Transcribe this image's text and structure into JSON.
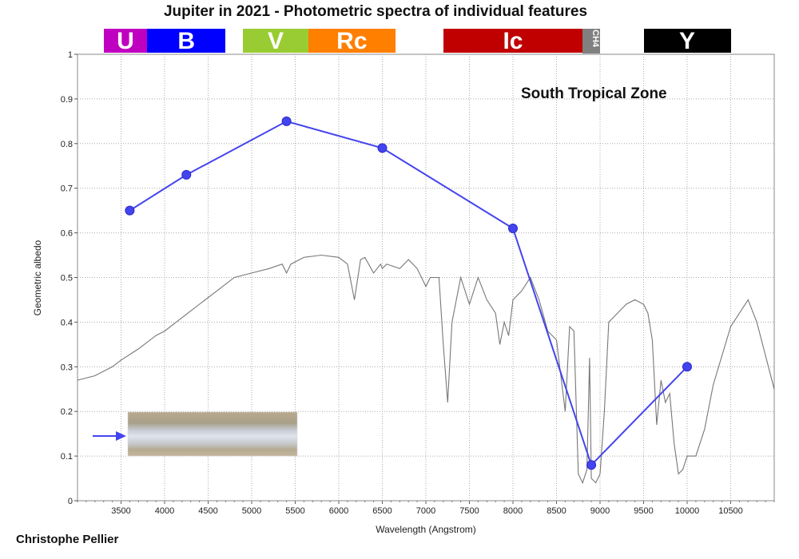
{
  "chart_data": {
    "type": "line",
    "title": "Jupiter in 2021 - Photometric spectra of individual features",
    "annotation": "South Tropical Zone",
    "xlabel": "Wavelength (Angstrom)",
    "ylabel": "Geometric albedo",
    "xlim": [
      3000,
      11000
    ],
    "ylim": [
      0,
      1
    ],
    "x_ticks": [
      "3500",
      "4000",
      "4500",
      "5000",
      "5500",
      "6000",
      "6500",
      "7000",
      "7500",
      "8000",
      "8500",
      "9000",
      "9500",
      "10000",
      "10500"
    ],
    "y_ticks": [
      "0",
      "0.1",
      "0.2",
      "0.3",
      "0.4",
      "0.5",
      "0.6",
      "0.7",
      "0.8",
      "0.9",
      "1"
    ],
    "grid": true,
    "bands": [
      {
        "label": "U",
        "color": "#c000c0",
        "from": 3300,
        "to": 3800
      },
      {
        "label": "B",
        "color": "#0000ff",
        "from": 3800,
        "to": 4700
      },
      {
        "label": "V",
        "color": "#99cc33",
        "from": 4900,
        "to": 5650
      },
      {
        "label": "Rc",
        "color": "#ff7f00",
        "from": 5650,
        "to": 6650
      },
      {
        "label": "Ic",
        "color": "#c00000",
        "from": 7200,
        "to": 8800
      },
      {
        "label": "CH4",
        "color": "#808080",
        "from": 8800,
        "to": 9000
      },
      {
        "label": "Y",
        "color": "#000000",
        "from": 9500,
        "to": 10500
      }
    ],
    "series": [
      {
        "color": "#4444ee",
        "x": [
          3600,
          4250,
          5400,
          6500,
          8000,
          8900,
          10000
        ],
        "y": [
          0.65,
          0.73,
          0.85,
          0.79,
          0.61,
          0.08,
          0.3
        ]
      },
      {
        "color": "#777777",
        "x": [
          3000,
          3200,
          3400,
          3500,
          3700,
          3900,
          4000,
          4200,
          4400,
          4600,
          4800,
          5000,
          5200,
          5350,
          5400,
          5450,
          5600,
          5800,
          6000,
          6100,
          6180,
          6250,
          6300,
          6400,
          6480,
          6500,
          6550,
          6700,
          6800,
          6900,
          7000,
          7050,
          7150,
          7200,
          7250,
          7300,
          7400,
          7500,
          7600,
          7700,
          7800,
          7850,
          7900,
          7950,
          8000,
          8100,
          8200,
          8300,
          8400,
          8500,
          8550,
          8600,
          8650,
          8700,
          8750,
          8800,
          8850,
          8880,
          8900,
          8950,
          9000,
          9050,
          9100,
          9200,
          9300,
          9400,
          9500,
          9550,
          9600,
          9650,
          9700,
          9750,
          9800,
          9850,
          9900,
          9950,
          10000,
          10100,
          10200,
          10300,
          10500,
          10700,
          10800,
          11000
        ],
        "y": [
          0.27,
          0.28,
          0.3,
          0.315,
          0.34,
          0.37,
          0.38,
          0.41,
          0.44,
          0.47,
          0.5,
          0.51,
          0.52,
          0.53,
          0.51,
          0.53,
          0.545,
          0.55,
          0.545,
          0.53,
          0.45,
          0.54,
          0.545,
          0.51,
          0.53,
          0.52,
          0.53,
          0.52,
          0.54,
          0.52,
          0.48,
          0.5,
          0.5,
          0.35,
          0.22,
          0.4,
          0.5,
          0.44,
          0.5,
          0.45,
          0.42,
          0.35,
          0.4,
          0.37,
          0.45,
          0.47,
          0.5,
          0.45,
          0.38,
          0.36,
          0.28,
          0.2,
          0.39,
          0.38,
          0.06,
          0.04,
          0.07,
          0.32,
          0.05,
          0.04,
          0.06,
          0.2,
          0.4,
          0.42,
          0.44,
          0.45,
          0.44,
          0.42,
          0.36,
          0.17,
          0.27,
          0.22,
          0.24,
          0.13,
          0.06,
          0.07,
          0.1,
          0.1,
          0.16,
          0.26,
          0.39,
          0.45,
          0.4,
          0.25
        ]
      }
    ]
  },
  "credit": "Christophe Pellier",
  "colors": {
    "arrow": "#4444ee"
  }
}
